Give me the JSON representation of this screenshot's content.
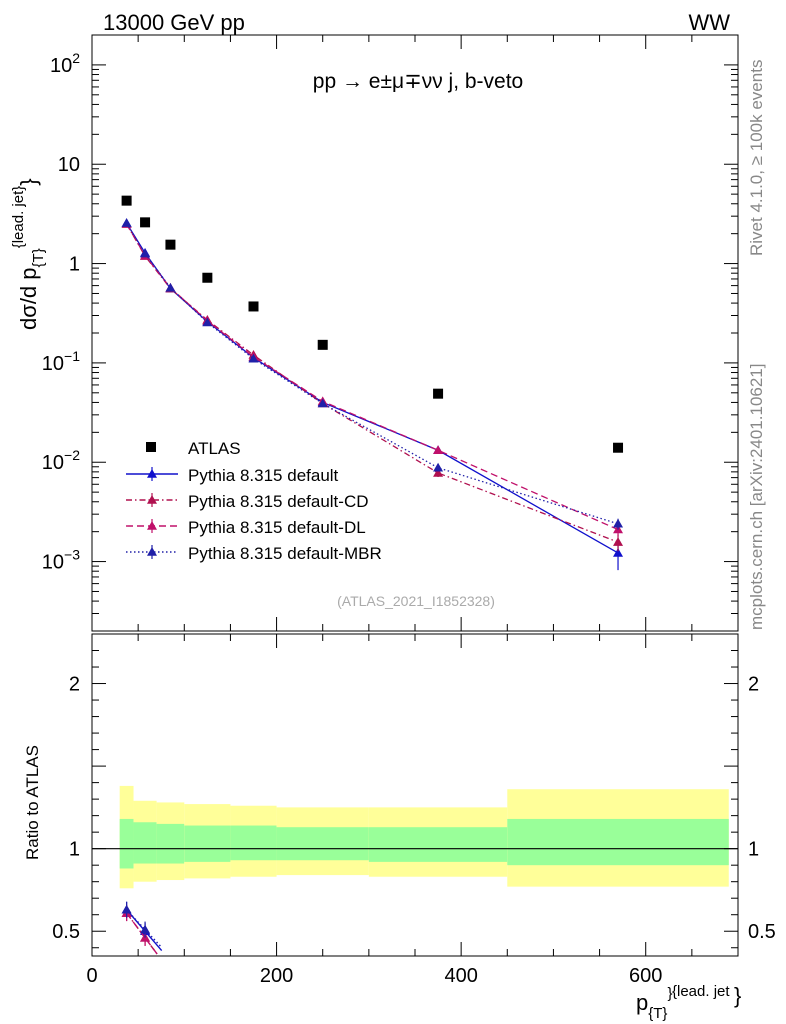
{
  "header": {
    "left": "13000 GeV pp",
    "right": "WW"
  },
  "side_labels": {
    "rivet": "Rivet 4.1.0, ≥ 100k events",
    "mcplots": "mcplots.cern.ch [arXiv:2401.10621]"
  },
  "chart_data": {
    "type": "scatter",
    "title": "pp → e±μ∓νν j, b-veto",
    "watermark": "(ATLAS_2021_I1852328)",
    "xlabel": "p_{T}^{lead. jet}",
    "ylabel": "dσ/d p_{T}^{lead. jet}",
    "ratio_ylabel": "Ratio to ATLAS",
    "xlim": [
      0,
      700
    ],
    "ylim": [
      0.0002,
      200
    ],
    "ratio_ylim": [
      0.35,
      2.3
    ],
    "x_ticks": [
      0,
      200,
      400,
      600
    ],
    "y_ticks": [
      {
        "value": 0.001,
        "base": "10",
        "exp": "−3"
      },
      {
        "value": 0.01,
        "base": "10",
        "exp": "−2"
      },
      {
        "value": 0.1,
        "base": "10",
        "exp": "−1"
      },
      {
        "value": 1,
        "base": "1",
        "exp": ""
      },
      {
        "value": 10,
        "base": "10",
        "exp": ""
      },
      {
        "value": 100,
        "base": "10",
        "exp": "2"
      }
    ],
    "ratio_y_ticks": [
      0.5,
      1,
      2
    ],
    "bins": [
      {
        "lo": 30,
        "hi": 45
      },
      {
        "lo": 45,
        "hi": 70
      },
      {
        "lo": 70,
        "hi": 100
      },
      {
        "lo": 100,
        "hi": 150
      },
      {
        "lo": 150,
        "hi": 200
      },
      {
        "lo": 200,
        "hi": 300
      },
      {
        "lo": 300,
        "hi": 450
      },
      {
        "lo": 450,
        "hi": 690
      }
    ],
    "data": {
      "name": "ATLAS",
      "x": [
        37.5,
        57.5,
        85,
        125,
        175,
        250,
        375,
        570
      ],
      "y": [
        4.3,
        2.6,
        1.55,
        0.72,
        0.37,
        0.152,
        0.049,
        0.014
      ],
      "band_inner": [
        [
          0.88,
          1.18
        ],
        [
          0.91,
          1.16
        ],
        [
          0.91,
          1.15
        ],
        [
          0.92,
          1.14
        ],
        [
          0.93,
          1.14
        ],
        [
          0.93,
          1.13
        ],
        [
          0.92,
          1.13
        ],
        [
          0.9,
          1.18
        ]
      ],
      "band_outer": [
        [
          0.76,
          1.38
        ],
        [
          0.8,
          1.29
        ],
        [
          0.81,
          1.28
        ],
        [
          0.82,
          1.27
        ],
        [
          0.83,
          1.26
        ],
        [
          0.84,
          1.25
        ],
        [
          0.83,
          1.25
        ],
        [
          0.77,
          1.36
        ]
      ]
    },
    "series": [
      {
        "name": "Pythia 8.315 default",
        "color": "#1010cc",
        "dash": "",
        "y": [
          2.55,
          1.28,
          0.56,
          0.26,
          0.113,
          0.04,
          0.0132,
          0.00122
        ],
        "err": [
          0.06,
          0.03,
          0.015,
          0.008,
          0.004,
          0.0015,
          0.0008,
          0.0004
        ],
        "ratio": [
          0.63,
          0.5
        ]
      },
      {
        "name": "Pythia 8.315 default-CD",
        "color": "#b0104f",
        "dash": "6,3,1.5,3",
        "y": [
          2.5,
          1.19,
          0.56,
          0.27,
          0.12,
          0.039,
          0.0078,
          0.00157
        ],
        "err": [
          0.06,
          0.03,
          0.015,
          0.008,
          0.004,
          0.0015,
          0.0007,
          0.0003
        ],
        "ratio": [
          0.61,
          0.46
        ]
      },
      {
        "name": "Pythia 8.315 default-DL",
        "color": "#c0106a",
        "dash": "7,4",
        "y": [
          2.5,
          1.2,
          0.57,
          0.265,
          0.115,
          0.041,
          0.0132,
          0.0021
        ],
        "err": [
          0.06,
          0.03,
          0.015,
          0.008,
          0.004,
          0.0015,
          0.0008,
          0.0003
        ],
        "ratio": [
          0.61,
          0.46
        ]
      },
      {
        "name": "Pythia 8.315 default-MBR",
        "color": "#2020a8",
        "dash": "1.5,2.5",
        "y": [
          2.55,
          1.26,
          0.57,
          0.255,
          0.11,
          0.039,
          0.0088,
          0.0024
        ],
        "err": [
          0.06,
          0.03,
          0.015,
          0.008,
          0.004,
          0.0015,
          0.0007,
          0.0003
        ],
        "ratio": [
          0.63,
          0.51
        ]
      }
    ],
    "colors": {
      "band_inner": "#99ff99",
      "band_outer": "#ffff99"
    }
  }
}
